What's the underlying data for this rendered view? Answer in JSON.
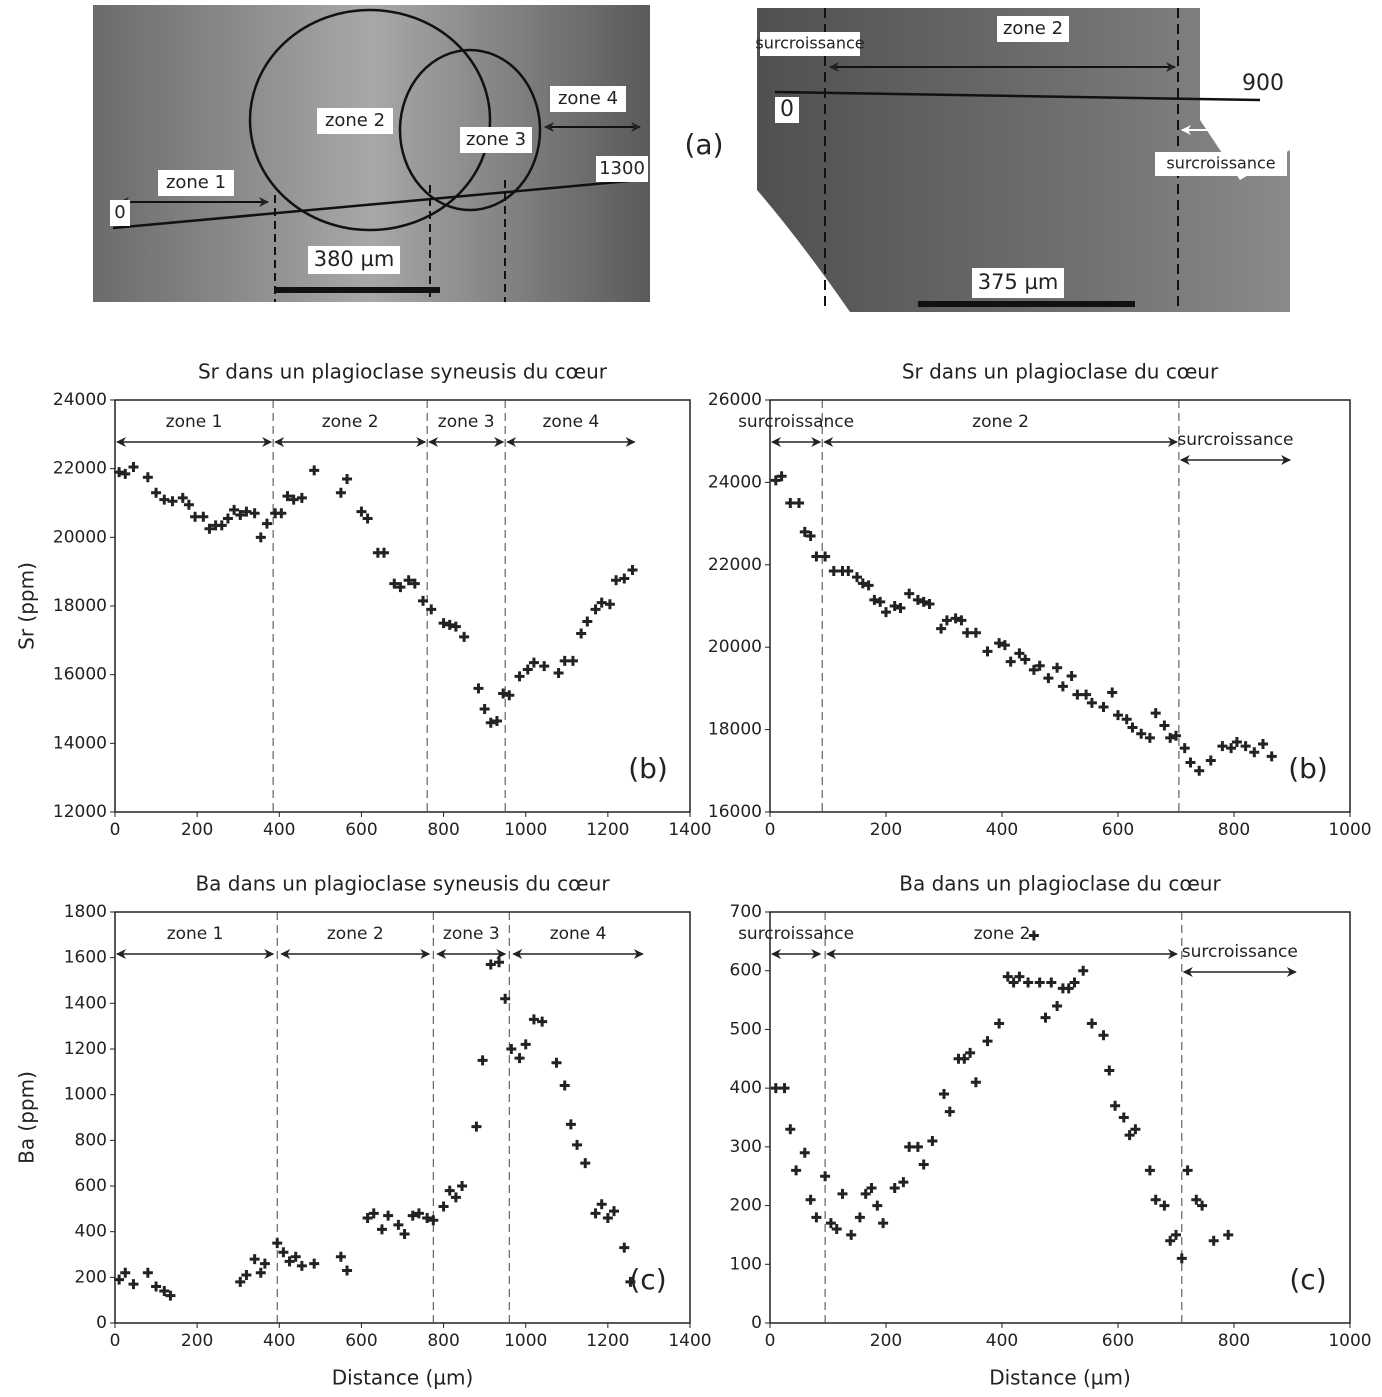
{
  "images": {
    "panel_label": "(a)",
    "left": {
      "labels": [
        "zone 2",
        "zone 3",
        "zone 4",
        "zone 1",
        "0",
        "1300",
        "380 µm"
      ]
    },
    "right": {
      "labels": [
        "zone 2",
        "surcroissance",
        "900",
        "0",
        "surcroissance",
        "375 µm"
      ]
    }
  },
  "chart_data": [
    {
      "type": "scatter",
      "title": "Sr dans un plagioclase syneusis du cœur",
      "ylabel": "Sr (ppm)",
      "panel_label": "(b)",
      "color": "#222222",
      "xlim": [
        0,
        1400
      ],
      "xticks": [
        0,
        200,
        400,
        600,
        800,
        1000,
        1200,
        1400
      ],
      "ylim": [
        12000,
        24000
      ],
      "yticks": [
        12000,
        14000,
        16000,
        18000,
        20000,
        22000,
        24000
      ],
      "boundaries": [
        385,
        760,
        950
      ],
      "zones": [
        {
          "label": "zone 1",
          "from": 0,
          "to": 385
        },
        {
          "label": "zone 2",
          "from": 385,
          "to": 760
        },
        {
          "label": "zone 3",
          "from": 760,
          "to": 950
        },
        {
          "label": "zone 4",
          "from": 950,
          "to": 1270
        }
      ],
      "x": [
        10,
        25,
        45,
        80,
        100,
        120,
        140,
        165,
        180,
        195,
        215,
        230,
        245,
        260,
        275,
        290,
        305,
        320,
        340,
        355,
        370,
        390,
        405,
        420,
        435,
        455,
        485,
        550,
        565,
        600,
        615,
        640,
        655,
        680,
        695,
        715,
        730,
        750,
        770,
        800,
        815,
        830,
        850,
        885,
        900,
        915,
        930,
        945,
        960,
        985,
        1005,
        1020,
        1045,
        1080,
        1095,
        1115,
        1135,
        1150,
        1170,
        1185,
        1205,
        1220,
        1240,
        1260
      ],
      "values": [
        21900,
        21850,
        22050,
        21750,
        21300,
        21100,
        21050,
        21150,
        20950,
        20600,
        20600,
        20250,
        20350,
        20350,
        20550,
        20800,
        20650,
        20750,
        20700,
        20000,
        20400,
        20700,
        20700,
        21200,
        21100,
        21150,
        21950,
        21300,
        21700,
        20750,
        20550,
        19550,
        19550,
        18650,
        18550,
        18750,
        18650,
        18150,
        17900,
        17500,
        17450,
        17400,
        17100,
        15600,
        15000,
        14600,
        14650,
        15450,
        15400,
        15950,
        16150,
        16350,
        16250,
        16050,
        16400,
        16400,
        17200,
        17550,
        17900,
        18100,
        18050,
        18750,
        18800,
        19050
      ]
    },
    {
      "type": "scatter",
      "title": "Sr dans un plagioclase du cœur",
      "panel_label": "(b)",
      "color": "#222222",
      "xlim": [
        0,
        1000
      ],
      "xticks": [
        0,
        200,
        400,
        600,
        800,
        1000
      ],
      "ylim": [
        16000,
        26000
      ],
      "yticks": [
        16000,
        18000,
        20000,
        22000,
        24000,
        26000
      ],
      "boundaries": [
        90,
        705
      ],
      "zones": [
        {
          "label": "surcroissance",
          "from": 0,
          "to": 90
        },
        {
          "label": "zone 2",
          "from": 90,
          "to": 705
        },
        {
          "label": "surcroissance",
          "from": 705,
          "to": 900
        }
      ],
      "x": [
        10,
        20,
        35,
        50,
        60,
        70,
        80,
        95,
        110,
        125,
        135,
        150,
        160,
        170,
        180,
        190,
        200,
        215,
        225,
        240,
        255,
        265,
        275,
        295,
        305,
        320,
        330,
        340,
        355,
        375,
        395,
        405,
        415,
        430,
        440,
        455,
        465,
        480,
        495,
        505,
        520,
        530,
        545,
        555,
        575,
        590,
        600,
        615,
        625,
        640,
        655,
        665,
        680,
        690,
        700,
        715,
        725,
        740,
        760,
        780,
        795,
        805,
        820,
        835,
        850,
        865
      ],
      "values": [
        24050,
        24150,
        23500,
        23500,
        22800,
        22700,
        22200,
        22200,
        21850,
        21850,
        21850,
        21700,
        21550,
        21500,
        21150,
        21100,
        20850,
        21000,
        20950,
        21300,
        21150,
        21100,
        21050,
        20450,
        20650,
        20700,
        20650,
        20350,
        20350,
        19900,
        20100,
        20050,
        19650,
        19850,
        19700,
        19450,
        19550,
        19250,
        19500,
        19050,
        19300,
        18850,
        18850,
        18650,
        18550,
        18900,
        18350,
        18250,
        18050,
        17900,
        17800,
        18400,
        18100,
        17800,
        17850,
        17550,
        17200,
        17000,
        17250,
        17600,
        17550,
        17700,
        17600,
        17450,
        17650,
        17350
      ]
    },
    {
      "type": "scatter",
      "title": "Ba dans un plagioclase syneusis du cœur",
      "ylabel": "Ba (ppm)",
      "xlabel": "Distance (µm)",
      "panel_label": "(c)",
      "color": "#222222",
      "xlim": [
        0,
        1400
      ],
      "xticks": [
        0,
        200,
        400,
        600,
        800,
        1000,
        1200,
        1400
      ],
      "ylim": [
        0,
        1800
      ],
      "yticks": [
        0,
        200,
        400,
        600,
        800,
        1000,
        1200,
        1400,
        1600,
        1800
      ],
      "boundaries": [
        395,
        775,
        960
      ],
      "zones": [
        {
          "label": "zone 1",
          "from": 0,
          "to": 390
        },
        {
          "label": "zone 2",
          "from": 400,
          "to": 770
        },
        {
          "label": "zone 3",
          "from": 780,
          "to": 955
        },
        {
          "label": "zone 4",
          "from": 965,
          "to": 1290
        }
      ],
      "x": [
        10,
        25,
        45,
        80,
        100,
        120,
        135,
        305,
        320,
        340,
        355,
        365,
        395,
        410,
        425,
        440,
        455,
        485,
        550,
        565,
        615,
        630,
        650,
        665,
        690,
        705,
        725,
        740,
        760,
        775,
        800,
        815,
        830,
        845,
        880,
        895,
        915,
        935,
        950,
        965,
        985,
        1000,
        1020,
        1040,
        1075,
        1095,
        1110,
        1125,
        1145,
        1170,
        1185,
        1200,
        1215,
        1240,
        1255
      ],
      "values": [
        190,
        220,
        170,
        220,
        160,
        140,
        120,
        180,
        210,
        280,
        220,
        260,
        350,
        310,
        270,
        290,
        250,
        260,
        290,
        230,
        460,
        480,
        410,
        470,
        430,
        390,
        470,
        480,
        460,
        450,
        510,
        580,
        550,
        600,
        860,
        1150,
        1570,
        1580,
        1420,
        1200,
        1160,
        1220,
        1330,
        1320,
        1140,
        1040,
        870,
        780,
        700,
        480,
        520,
        460,
        490,
        330,
        180
      ]
    },
    {
      "type": "scatter",
      "title": "Ba dans un plagioclase du cœur",
      "xlabel": "Distance (µm)",
      "panel_label": "(c)",
      "color": "#222222",
      "xlim": [
        0,
        1000
      ],
      "xticks": [
        0,
        200,
        400,
        600,
        800,
        1000
      ],
      "ylim": [
        0,
        700
      ],
      "yticks": [
        0,
        100,
        200,
        300,
        400,
        500,
        600,
        700
      ],
      "boundaries": [
        95,
        710
      ],
      "zones": [
        {
          "label": "surcroissance",
          "from": 0,
          "to": 90
        },
        {
          "label": "zone 2",
          "from": 95,
          "to": 705
        },
        {
          "label": "surcroissance",
          "from": 710,
          "to": 910
        }
      ],
      "x": [
        10,
        25,
        35,
        45,
        60,
        70,
        80,
        95,
        105,
        115,
        125,
        140,
        155,
        165,
        175,
        185,
        195,
        215,
        230,
        240,
        255,
        265,
        280,
        300,
        310,
        325,
        335,
        345,
        355,
        375,
        395,
        410,
        420,
        430,
        445,
        455,
        465,
        475,
        485,
        495,
        505,
        515,
        525,
        540,
        555,
        575,
        585,
        595,
        610,
        620,
        630,
        655,
        665,
        680,
        690,
        700,
        710,
        720,
        735,
        745,
        765,
        790
      ],
      "values": [
        400,
        400,
        330,
        260,
        290,
        210,
        180,
        250,
        170,
        160,
        220,
        150,
        180,
        220,
        230,
        200,
        170,
        230,
        240,
        300,
        300,
        270,
        310,
        390,
        360,
        450,
        450,
        460,
        410,
        480,
        510,
        590,
        580,
        590,
        580,
        660,
        580,
        520,
        580,
        540,
        570,
        570,
        580,
        600,
        510,
        490,
        430,
        370,
        350,
        320,
        330,
        260,
        210,
        200,
        140,
        150,
        110,
        260,
        210,
        200,
        140,
        150
      ]
    }
  ]
}
